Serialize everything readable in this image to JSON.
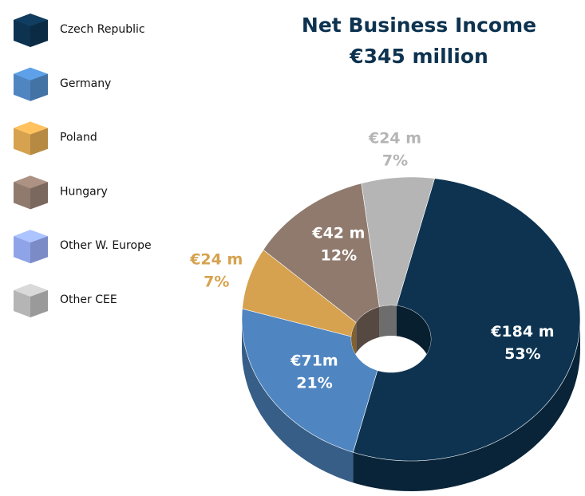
{
  "chart_data": {
    "type": "donut3d",
    "title": "Net Business Income",
    "subtitle": "€345 million",
    "categories": [
      "Czech Republic",
      "Germany",
      "Poland",
      "Hungary",
      "Other W. Europe",
      "Other CEE"
    ],
    "colors": [
      "#0d3350",
      "#4f86c1",
      "#d6a24f",
      "#907a6e",
      "#8fa3e8",
      "#b5b5b5"
    ],
    "values": [
      184,
      71,
      24,
      42,
      null,
      24
    ],
    "value_labels": [
      "€184 m",
      "€71m",
      "€24 m",
      "€42 m",
      null,
      "€24 m"
    ],
    "shares": [
      53,
      21,
      7,
      12,
      null,
      7
    ],
    "share_labels": [
      "53%",
      "21%",
      "7%",
      "12%",
      null,
      "7%"
    ]
  }
}
